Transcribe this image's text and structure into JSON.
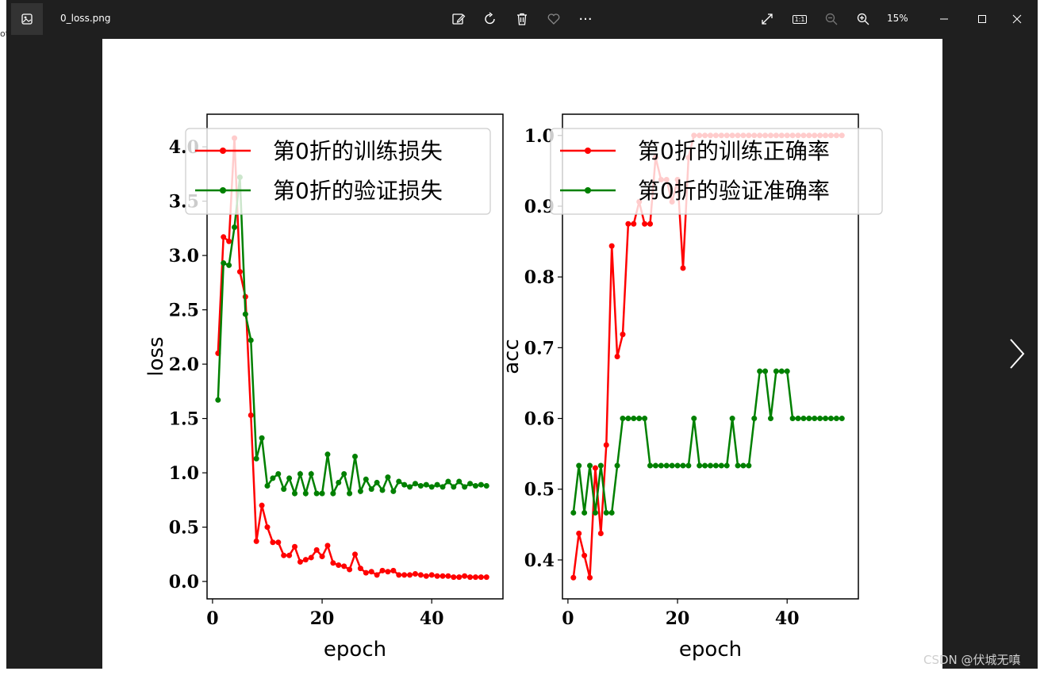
{
  "window": {
    "file_name": "0_loss.png",
    "zoom_label": "15%",
    "toolbar_icons": [
      "edit-image-icon",
      "rotate-icon",
      "delete-icon",
      "favorite-heart-icon",
      "more-icon"
    ],
    "right_icons": [
      "fullscreen-icon",
      "actual-size-icon",
      "zoom-out-icon",
      "zoom-in-icon"
    ],
    "actual_size_label": "1:1",
    "more_label": "···"
  },
  "watermark": "CSDN @伏城无嗔",
  "chart_data": [
    {
      "type": "line",
      "xlabel": "epoch",
      "ylabel": "loss",
      "xlim": [
        -1,
        53
      ],
      "ylim": [
        -0.16,
        4.3
      ],
      "xticks": [
        0,
        20,
        40
      ],
      "yticks": [
        0.0,
        0.5,
        1.0,
        1.5,
        2.0,
        2.5,
        3.0,
        3.5,
        4.0
      ],
      "legend_position": "top-right",
      "x": [
        1,
        2,
        3,
        4,
        5,
        6,
        7,
        8,
        9,
        10,
        11,
        12,
        13,
        14,
        15,
        16,
        17,
        18,
        19,
        20,
        21,
        22,
        23,
        24,
        25,
        26,
        27,
        28,
        29,
        30,
        31,
        32,
        33,
        34,
        35,
        36,
        37,
        38,
        39,
        40,
        41,
        42,
        43,
        44,
        45,
        46,
        47,
        48,
        49,
        50
      ],
      "series": [
        {
          "name": "第0折的训练损失",
          "color": "#ff0000",
          "values": [
            2.1,
            3.17,
            3.13,
            4.08,
            2.85,
            2.62,
            1.53,
            0.37,
            0.7,
            0.5,
            0.36,
            0.36,
            0.24,
            0.24,
            0.32,
            0.18,
            0.2,
            0.22,
            0.29,
            0.23,
            0.33,
            0.17,
            0.15,
            0.14,
            0.11,
            0.25,
            0.12,
            0.08,
            0.09,
            0.06,
            0.1,
            0.09,
            0.1,
            0.06,
            0.06,
            0.06,
            0.07,
            0.06,
            0.05,
            0.06,
            0.05,
            0.05,
            0.05,
            0.04,
            0.04,
            0.05,
            0.04,
            0.04,
            0.04,
            0.04
          ]
        },
        {
          "name": "第0折的验证损失",
          "color": "#008000",
          "values": [
            1.67,
            2.93,
            2.91,
            3.26,
            3.72,
            2.46,
            2.22,
            1.13,
            1.32,
            0.88,
            0.95,
            0.99,
            0.85,
            0.95,
            0.81,
            0.99,
            0.81,
            0.99,
            0.81,
            0.81,
            1.17,
            0.81,
            0.91,
            0.99,
            0.81,
            1.15,
            0.83,
            0.94,
            0.85,
            0.91,
            0.84,
            0.96,
            0.83,
            0.92,
            0.89,
            0.87,
            0.9,
            0.88,
            0.89,
            0.87,
            0.89,
            0.87,
            0.92,
            0.87,
            0.92,
            0.87,
            0.9,
            0.88,
            0.89,
            0.88
          ]
        }
      ]
    },
    {
      "type": "line",
      "xlabel": "epoch",
      "ylabel": "acc",
      "xlim": [
        -1,
        53
      ],
      "ylim": [
        0.345,
        1.03
      ],
      "xticks": [
        0,
        20,
        40
      ],
      "yticks": [
        0.4,
        0.5,
        0.6,
        0.7,
        0.8,
        0.9,
        1.0
      ],
      "legend_position": "top-right",
      "x": [
        1,
        2,
        3,
        4,
        5,
        6,
        7,
        8,
        9,
        10,
        11,
        12,
        13,
        14,
        15,
        16,
        17,
        18,
        19,
        20,
        21,
        22,
        23,
        24,
        25,
        26,
        27,
        28,
        29,
        30,
        31,
        32,
        33,
        34,
        35,
        36,
        37,
        38,
        39,
        40,
        41,
        42,
        43,
        44,
        45,
        46,
        47,
        48,
        49,
        50
      ],
      "series": [
        {
          "name": "第0折的训练正确率",
          "color": "#ff0000",
          "values": [
            0.375,
            0.4375,
            0.40625,
            0.375,
            0.53,
            0.4375,
            0.5625,
            0.84375,
            0.6875,
            0.71875,
            0.875,
            0.875,
            0.90625,
            0.875,
            0.875,
            0.96875,
            0.9375,
            0.9375,
            0.90625,
            0.9375,
            0.8125,
            0.96875,
            1.0,
            1.0,
            1.0,
            1.0,
            1.0,
            1.0,
            1.0,
            1.0,
            1.0,
            1.0,
            1.0,
            1.0,
            1.0,
            1.0,
            1.0,
            1.0,
            1.0,
            1.0,
            1.0,
            1.0,
            1.0,
            1.0,
            1.0,
            1.0,
            1.0,
            1.0,
            1.0,
            1.0
          ]
        },
        {
          "name": "第0折的验证准确率",
          "color": "#008000",
          "values": [
            0.4667,
            0.5333,
            0.4667,
            0.5333,
            0.4667,
            0.5333,
            0.4667,
            0.4667,
            0.5333,
            0.6,
            0.6,
            0.6,
            0.6,
            0.6,
            0.5333,
            0.5333,
            0.5333,
            0.5333,
            0.5333,
            0.5333,
            0.5333,
            0.5333,
            0.6,
            0.5333,
            0.5333,
            0.5333,
            0.5333,
            0.5333,
            0.5333,
            0.6,
            0.5333,
            0.5333,
            0.5333,
            0.6,
            0.6667,
            0.6667,
            0.6,
            0.6667,
            0.6667,
            0.6667,
            0.6,
            0.6,
            0.6,
            0.6,
            0.6,
            0.6,
            0.6,
            0.6,
            0.6,
            0.6
          ]
        }
      ]
    }
  ]
}
